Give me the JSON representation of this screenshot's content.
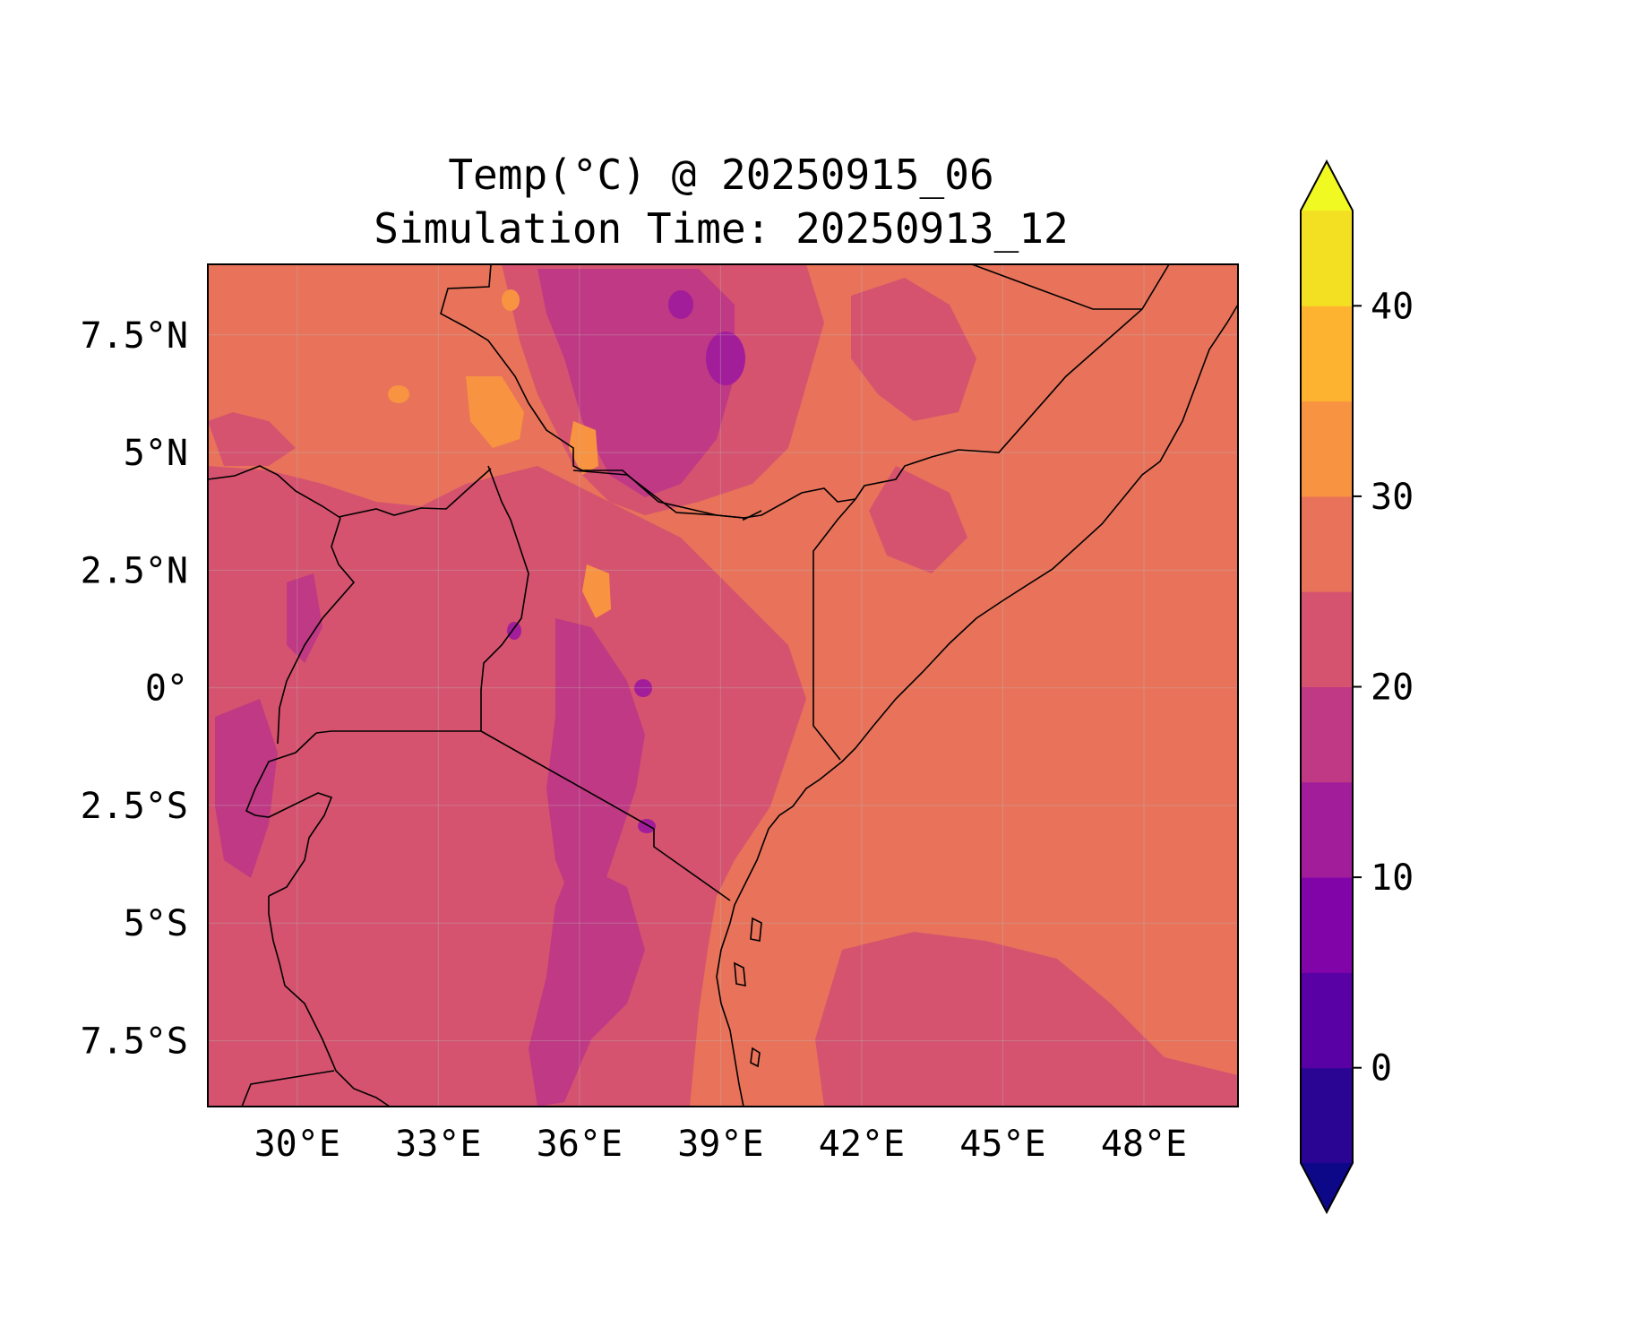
{
  "title": {
    "line1": "Temp(°C) @ 20250915_06",
    "line2": "Simulation Time: 20250913_12"
  },
  "map": {
    "lon_ticks": [
      "30°E",
      "33°E",
      "36°E",
      "39°E",
      "42°E",
      "45°E",
      "48°E"
    ],
    "lon_values": [
      30,
      33,
      36,
      39,
      42,
      45,
      48
    ],
    "lat_ticks": [
      "7.5°N",
      "5°N",
      "2.5°N",
      "0°",
      "2.5°S",
      "5°S",
      "7.5°S"
    ],
    "lat_values": [
      7.5,
      5,
      2.5,
      0,
      -2.5,
      -5,
      -7.5
    ],
    "extent": {
      "lon_min": 28.1,
      "lon_max": 50,
      "lat_min": -8.9,
      "lat_max": 9
    },
    "gridlines": true,
    "background_color": "#e8735a"
  },
  "colorbar": {
    "tick_labels": [
      "0",
      "10",
      "20",
      "30",
      "40"
    ],
    "tick_values": [
      0,
      10,
      20,
      30,
      40
    ],
    "levels": [
      -5,
      0,
      5,
      10,
      15,
      20,
      25,
      30,
      35,
      40,
      45
    ],
    "colors": [
      "#2a0593",
      "#5901a5",
      "#8004a8",
      "#a21d9a",
      "#bf3984",
      "#d5536f",
      "#e8735a",
      "#f89441",
      "#fdb32f",
      "#f4e022"
    ],
    "under_color": "#0d0887",
    "over_color": "#f0f921",
    "extend": "both"
  }
}
